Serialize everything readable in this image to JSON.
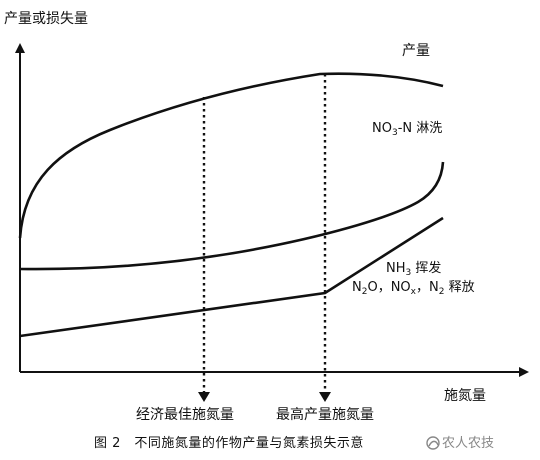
{
  "figure": {
    "y_axis_label": "产量或损失量",
    "x_axis_label": "施氮量",
    "curves": {
      "yield": "产量",
      "no3_leaching": {
        "species": "NO",
        "subscript": "3",
        "suffix": "-N 淋洗"
      },
      "nh3_volatilization": {
        "species": "NH",
        "subscript": "3",
        "suffix": " 挥发"
      },
      "n_oxides": {
        "a": "N",
        "a_sub": "2",
        "a_rest": "O，",
        "b": "NO",
        "b_sub": "x",
        "b_rest": "，",
        "c": "N",
        "c_sub": "2",
        "c_rest": " 释放"
      }
    },
    "markers": {
      "economic_optimum": "经济最佳施氮量",
      "max_yield": "最高产量施氮量"
    },
    "caption": "图 2　不同施氮量的作物产量与氮素损失示意"
  },
  "watermark": "农人农技",
  "colors": {
    "ink": "#111111",
    "watermark": "#888888"
  }
}
